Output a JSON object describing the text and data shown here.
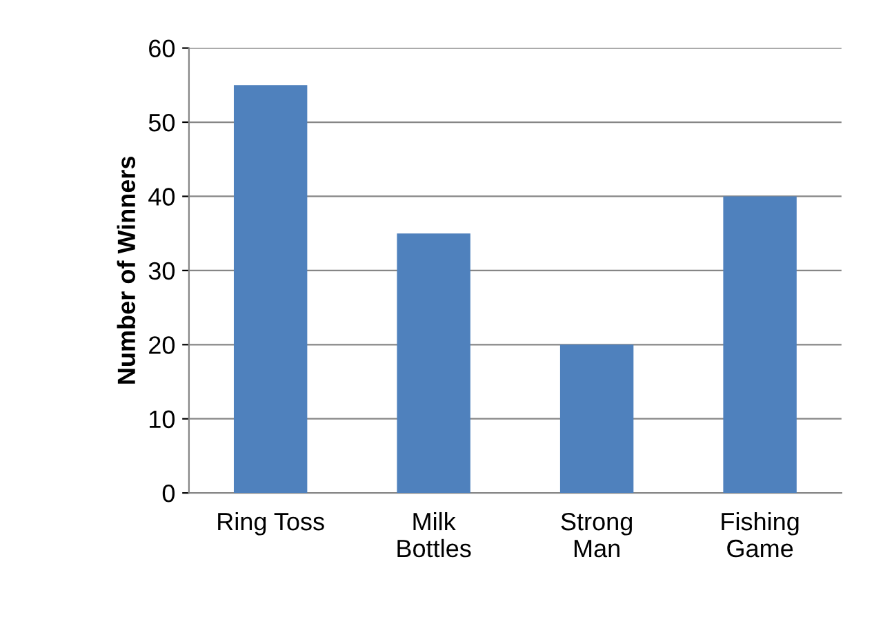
{
  "chart_data": {
    "type": "bar",
    "ylabel": "Number of Winners",
    "categories": [
      "Ring Toss",
      "Milk\nBottles",
      "Strong\nMan",
      "Fishing\nGame"
    ],
    "values": [
      55,
      35,
      20,
      40
    ],
    "color": "#4f81bd",
    "ylim": [
      0,
      60
    ],
    "yticks": [
      0,
      10,
      20,
      30,
      40,
      50,
      60
    ],
    "grid": "y",
    "legend": false
  }
}
